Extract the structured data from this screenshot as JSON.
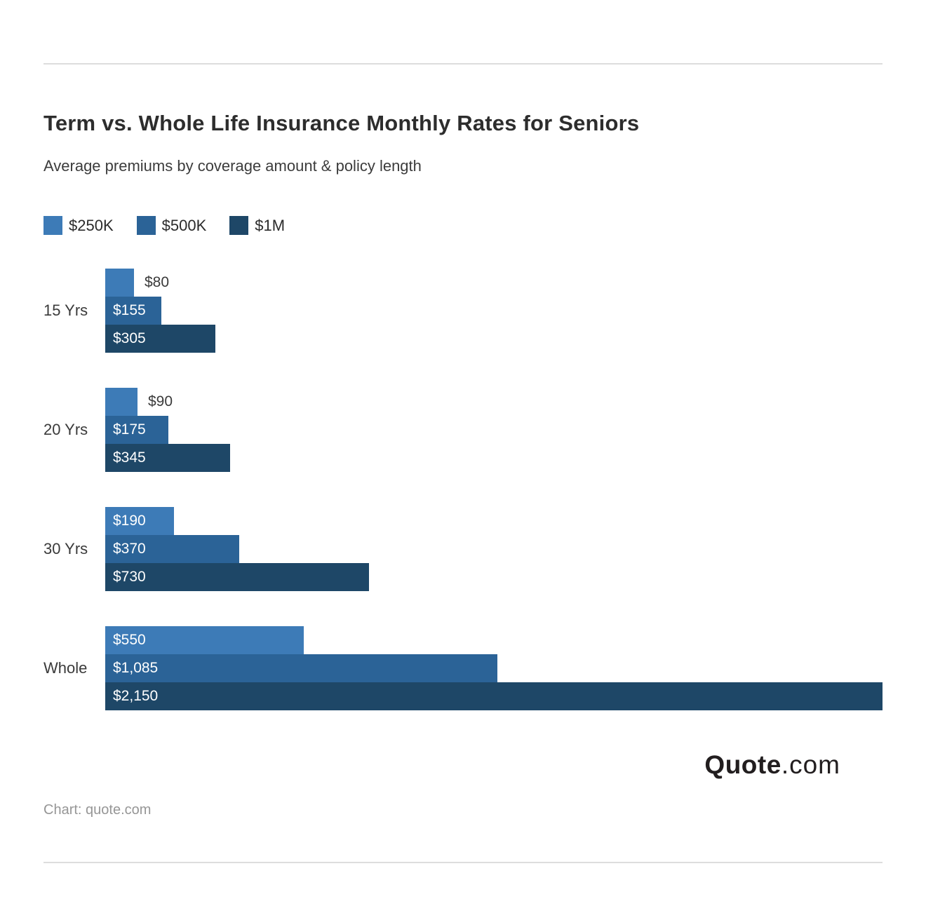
{
  "header": {
    "title": "Term vs. Whole Life Insurance Monthly Rates for Seniors",
    "subtitle": "Average premiums by coverage amount & policy length"
  },
  "chart_data": {
    "type": "bar",
    "orientation": "horizontal",
    "title": "Term vs. Whole Life Insurance Monthly Rates for Seniors",
    "subtitle": "Average premiums by coverage amount & policy length",
    "categories": [
      "15 Yrs",
      "20 Yrs",
      "30 Yrs",
      "Whole"
    ],
    "series": [
      {
        "name": "$250K",
        "color": "#3d7bb7",
        "values": [
          80,
          90,
          190,
          550
        ],
        "labels": [
          "$80",
          "$90",
          "$190",
          "$550"
        ]
      },
      {
        "name": "$500K",
        "color": "#2b6397",
        "values": [
          155,
          175,
          370,
          1085
        ],
        "labels": [
          "$155",
          "$175",
          "$370",
          "$1,085"
        ]
      },
      {
        "name": "$1M",
        "color": "#1e4767",
        "values": [
          305,
          345,
          730,
          2150
        ],
        "labels": [
          "$305",
          "$345",
          "$730",
          "$2,150"
        ]
      }
    ],
    "xlim": [
      0,
      2150
    ],
    "grid": false,
    "legend_position": "top",
    "value_prefix": "$"
  },
  "footer": {
    "logo_bold": "Quote",
    "logo_rest": ".com",
    "byline": "Chart: quote.com"
  }
}
